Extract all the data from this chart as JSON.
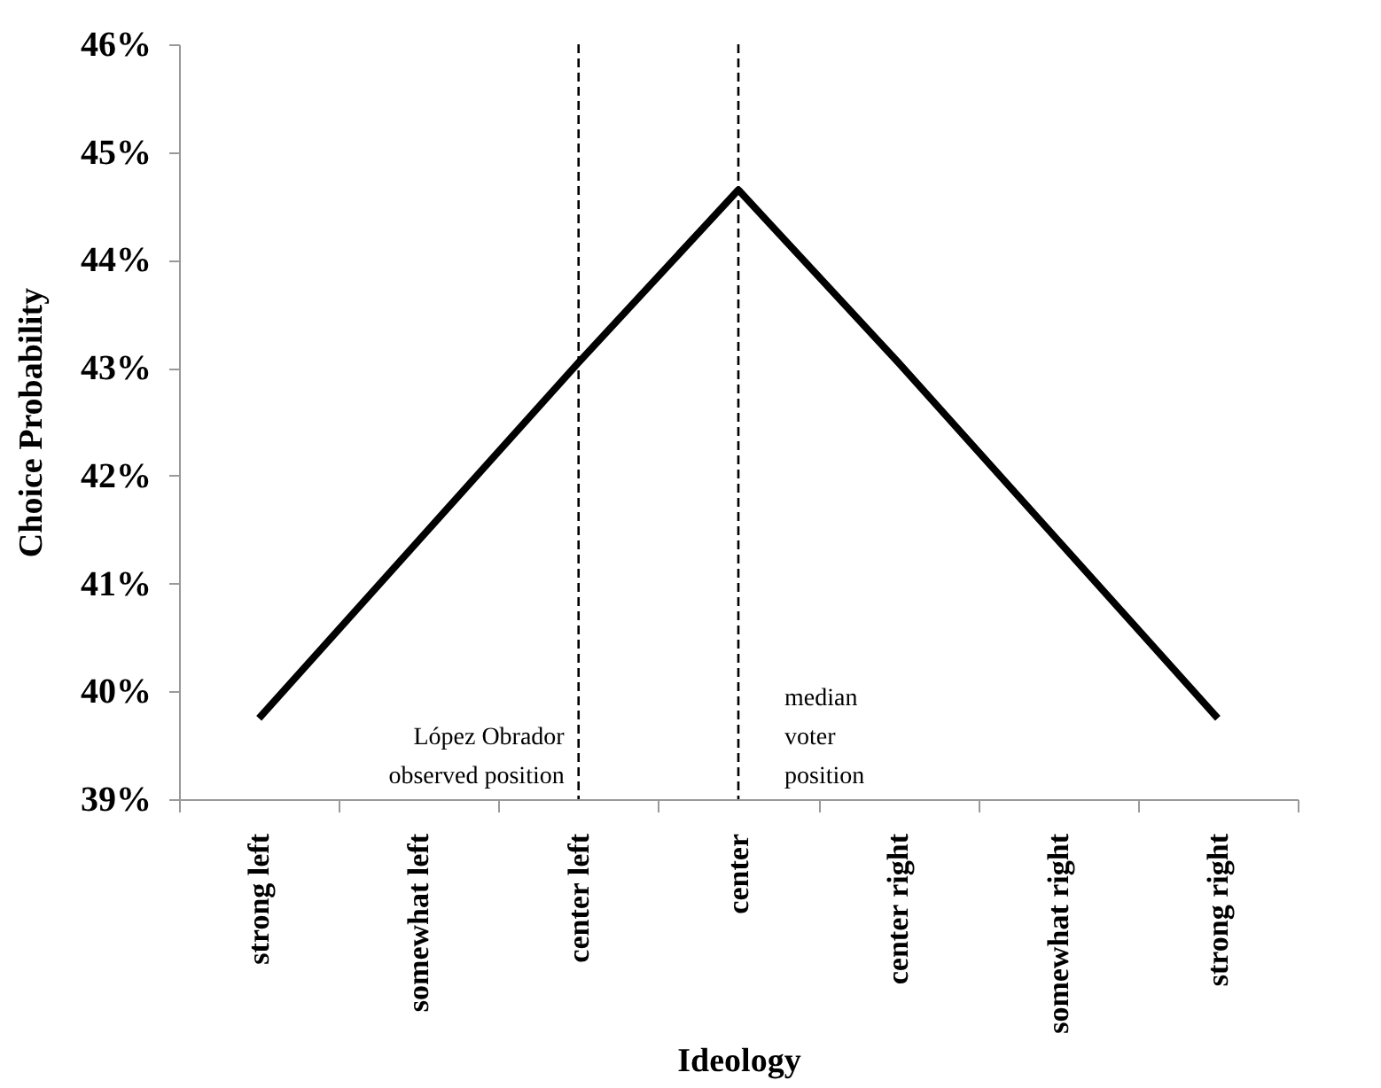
{
  "chart_data": {
    "type": "line",
    "xlabel": "Ideology",
    "ylabel": "Choice Probability",
    "categories": [
      "strong left",
      "somewhat left",
      "center left",
      "center",
      "center right",
      "somewhat right",
      "strong right"
    ],
    "series": [
      {
        "color": "#000000",
        "values": [
          39.75,
          41.4,
          43.05,
          44.65,
          43.05,
          41.4,
          39.75
        ]
      }
    ],
    "ylim": [
      39,
      46
    ],
    "yticks": [
      {
        "value": 39,
        "label": "39%"
      },
      {
        "value": 40,
        "label": "40%"
      },
      {
        "value": 41,
        "label": "41%"
      },
      {
        "value": 42,
        "label": "42%"
      },
      {
        "value": 43,
        "label": "43%"
      },
      {
        "value": 44,
        "label": "44%"
      },
      {
        "value": 45,
        "label": "45%"
      },
      {
        "value": 46,
        "label": "46%"
      }
    ],
    "ref_lines": [
      {
        "axis": "x",
        "value": "center left",
        "label": "López Obrador observed position",
        "line_style": "dashed",
        "color": "#000000"
      },
      {
        "axis": "x",
        "value": "center",
        "label": "median voter position",
        "line_style": "dashed",
        "color": "#000000"
      }
    ],
    "grid": false,
    "marker": "none",
    "line_style": "solid"
  }
}
